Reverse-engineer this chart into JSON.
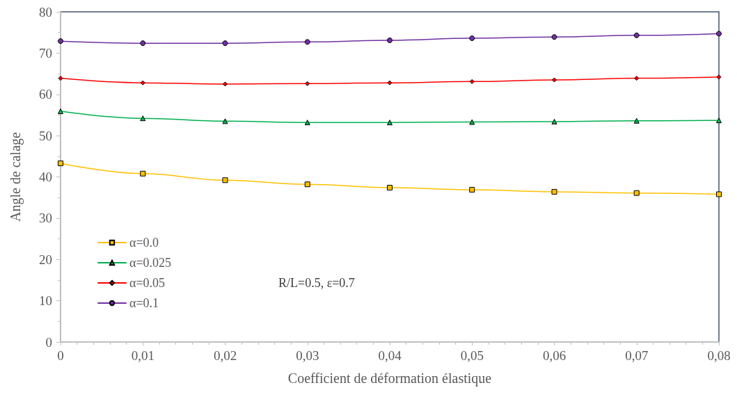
{
  "chart_data": {
    "type": "line",
    "xlabel": "Coefficient de déformation élastique",
    "ylabel": "Angle de calage",
    "x": [
      0,
      0.01,
      0.02,
      0.03,
      0.04,
      0.05,
      0.06,
      0.07,
      0.08
    ],
    "series": [
      {
        "name": "α=0.0",
        "color": "#ffc000",
        "marker": "square",
        "values": [
          43.3,
          40.8,
          39.2,
          38.2,
          37.4,
          36.9,
          36.4,
          36.1,
          35.8
        ]
      },
      {
        "name": "α=0.025",
        "color": "#00b050",
        "marker": "triangle",
        "values": [
          55.9,
          54.2,
          53.5,
          53.2,
          53.2,
          53.3,
          53.4,
          53.6,
          53.7
        ]
      },
      {
        "name": "α=0.05",
        "color": "#ff0000",
        "marker": "diamond",
        "values": [
          63.9,
          62.8,
          62.5,
          62.6,
          62.8,
          63.1,
          63.5,
          63.9,
          64.2
        ]
      },
      {
        "name": "α=0.1",
        "color": "#7030a0",
        "marker": "circle",
        "values": [
          72.9,
          72.4,
          72.4,
          72.7,
          73.1,
          73.6,
          73.9,
          74.3,
          74.7
        ]
      }
    ],
    "xlim": [
      0,
      0.08
    ],
    "xticks": [
      0,
      {
        "value": 0.01,
        "label": "0,01"
      },
      {
        "value": 0.02,
        "label": "0,02"
      },
      {
        "value": 0.03,
        "label": "0,03"
      },
      {
        "value": 0.04,
        "label": "0,04"
      },
      {
        "value": 0.05,
        "label": "0,05"
      },
      {
        "value": 0.06,
        "label": "0,06"
      },
      {
        "value": 0.07,
        "label": "0,07"
      },
      {
        "value": 0.08,
        "label": "0,08"
      }
    ],
    "ylim": [
      0,
      80
    ],
    "yticks": [
      0,
      10,
      20,
      30,
      40,
      50,
      60,
      70,
      80
    ],
    "grid": false,
    "legend": "bottom left",
    "annotations": [
      "R/L=0.5, ε=0.7"
    ]
  }
}
